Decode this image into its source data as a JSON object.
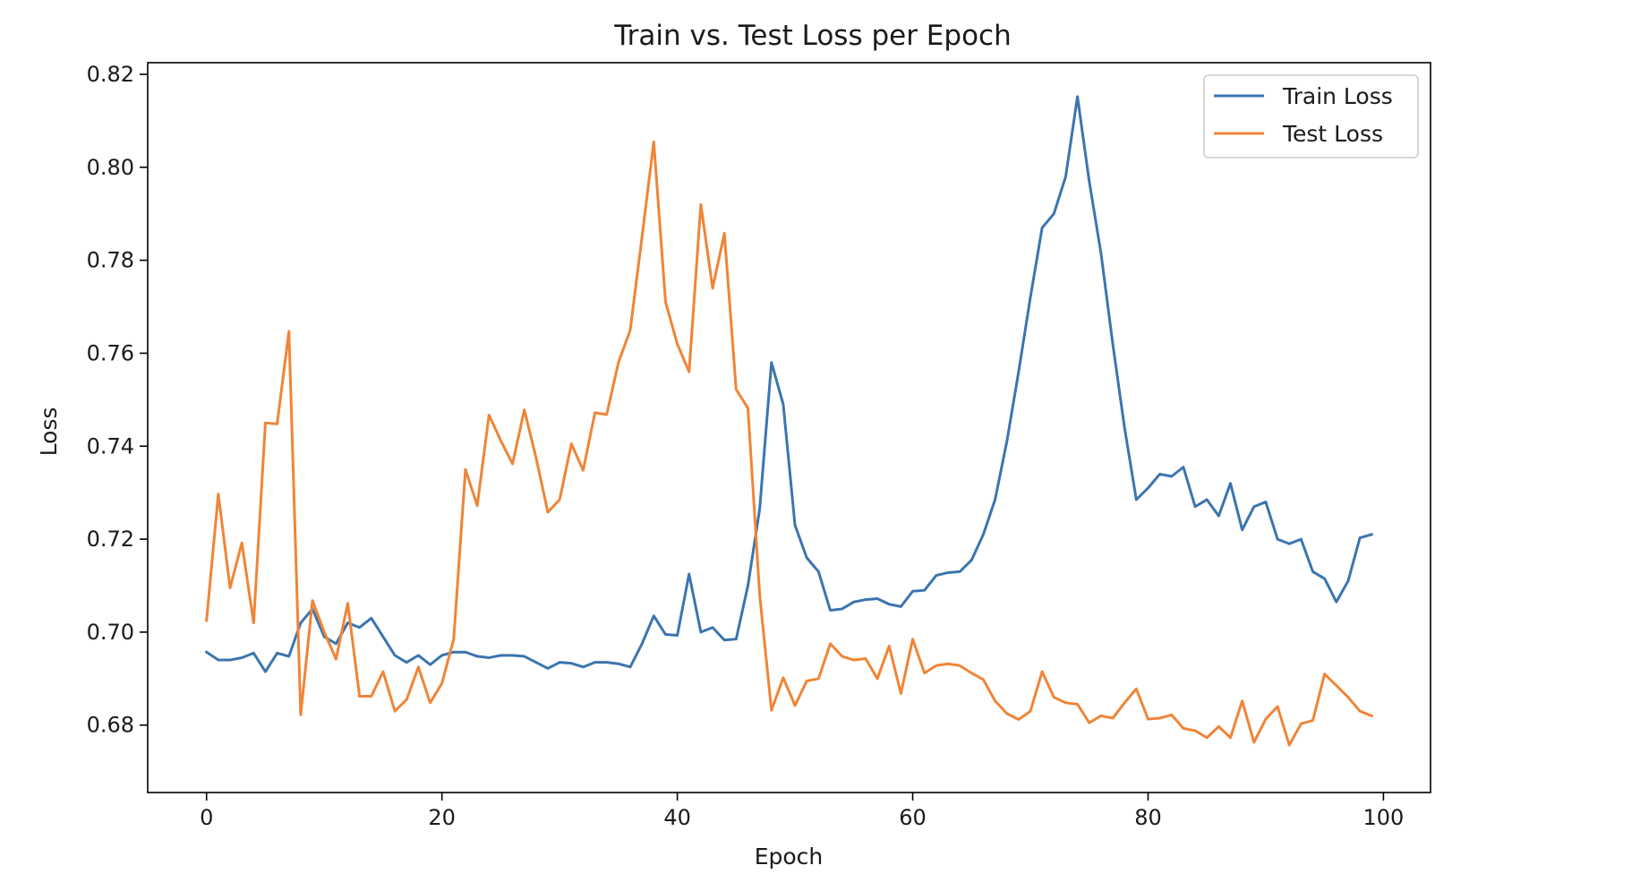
{
  "chart_data": {
    "type": "line",
    "title": "Train vs. Test Loss per Epoch",
    "xlabel": "Epoch",
    "ylabel": "Loss",
    "xlim": [
      -5,
      104
    ],
    "ylim": [
      0.6655,
      0.8225
    ],
    "xticks": [
      0,
      20,
      40,
      60,
      80,
      100
    ],
    "yticks": [
      0.68,
      0.7,
      0.72,
      0.74,
      0.76,
      0.78,
      0.8,
      0.82
    ],
    "xtick_labels": [
      "0",
      "20",
      "40",
      "60",
      "80",
      "100"
    ],
    "ytick_labels": [
      "0.68",
      "0.70",
      "0.72",
      "0.74",
      "0.76",
      "0.78",
      "0.80",
      "0.82"
    ],
    "grid": false,
    "legend_position": "top-right",
    "series": [
      {
        "name": "Train Loss",
        "color": "#3b75af",
        "values": [
          0.6957,
          0.694,
          0.694,
          0.6945,
          0.6955,
          0.6915,
          0.6955,
          0.6948,
          0.702,
          0.705,
          0.699,
          0.6975,
          0.702,
          0.701,
          0.703,
          0.699,
          0.695,
          0.6935,
          0.695,
          0.693,
          0.695,
          0.6957,
          0.6957,
          0.6948,
          0.6945,
          0.695,
          0.695,
          0.6948,
          0.6935,
          0.6922,
          0.6935,
          0.6933,
          0.6925,
          0.6935,
          0.6935,
          0.6932,
          0.6925,
          0.6975,
          0.7035,
          0.6995,
          0.6993,
          0.7125,
          0.7,
          0.701,
          0.6983,
          0.6985,
          0.71,
          0.7265,
          0.758,
          0.749,
          0.723,
          0.716,
          0.713,
          0.7047,
          0.705,
          0.7065,
          0.707,
          0.7072,
          0.706,
          0.7055,
          0.7088,
          0.709,
          0.7122,
          0.7128,
          0.713,
          0.7155,
          0.721,
          0.7285,
          0.741,
          0.756,
          0.772,
          0.787,
          0.79,
          0.798,
          0.8152,
          0.797,
          0.7815,
          0.762,
          0.744,
          0.7285,
          0.731,
          0.734,
          0.7335,
          0.7355,
          0.727,
          0.7285,
          0.725,
          0.732,
          0.722,
          0.727,
          0.728,
          0.72,
          0.719,
          0.72,
          0.713,
          0.7115,
          0.7065,
          0.711,
          0.7203,
          0.721
        ]
      },
      {
        "name": "Test Loss",
        "color": "#ef8536",
        "values": [
          0.7025,
          0.7297,
          0.7095,
          0.7192,
          0.702,
          0.745,
          0.7448,
          0.7647,
          0.6822,
          0.7068,
          0.7,
          0.6942,
          0.7062,
          0.6862,
          0.6862,
          0.6915,
          0.683,
          0.6855,
          0.6925,
          0.6848,
          0.689,
          0.6985,
          0.735,
          0.7272,
          0.7467,
          0.7412,
          0.7362,
          0.7478,
          0.7375,
          0.7258,
          0.7285,
          0.7405,
          0.7348,
          0.7472,
          0.7468,
          0.758,
          0.765,
          0.785,
          0.8055,
          0.771,
          0.762,
          0.756,
          0.792,
          0.774,
          0.7858,
          0.7522,
          0.7482,
          0.708,
          0.6832,
          0.6902,
          0.6842,
          0.6895,
          0.69,
          0.6975,
          0.6948,
          0.694,
          0.6943,
          0.69,
          0.697,
          0.6868,
          0.6985,
          0.6912,
          0.6928,
          0.6932,
          0.6928,
          0.6912,
          0.6898,
          0.6852,
          0.6825,
          0.6812,
          0.683,
          0.6915,
          0.686,
          0.6848,
          0.6845,
          0.6805,
          0.682,
          0.6815,
          0.6848,
          0.6878,
          0.6813,
          0.6815,
          0.6822,
          0.6793,
          0.6788,
          0.6773,
          0.6797,
          0.6773,
          0.6852,
          0.6763,
          0.6813,
          0.684,
          0.6757,
          0.6803,
          0.681,
          0.691,
          0.6885,
          0.686,
          0.683,
          0.682
        ]
      }
    ]
  }
}
